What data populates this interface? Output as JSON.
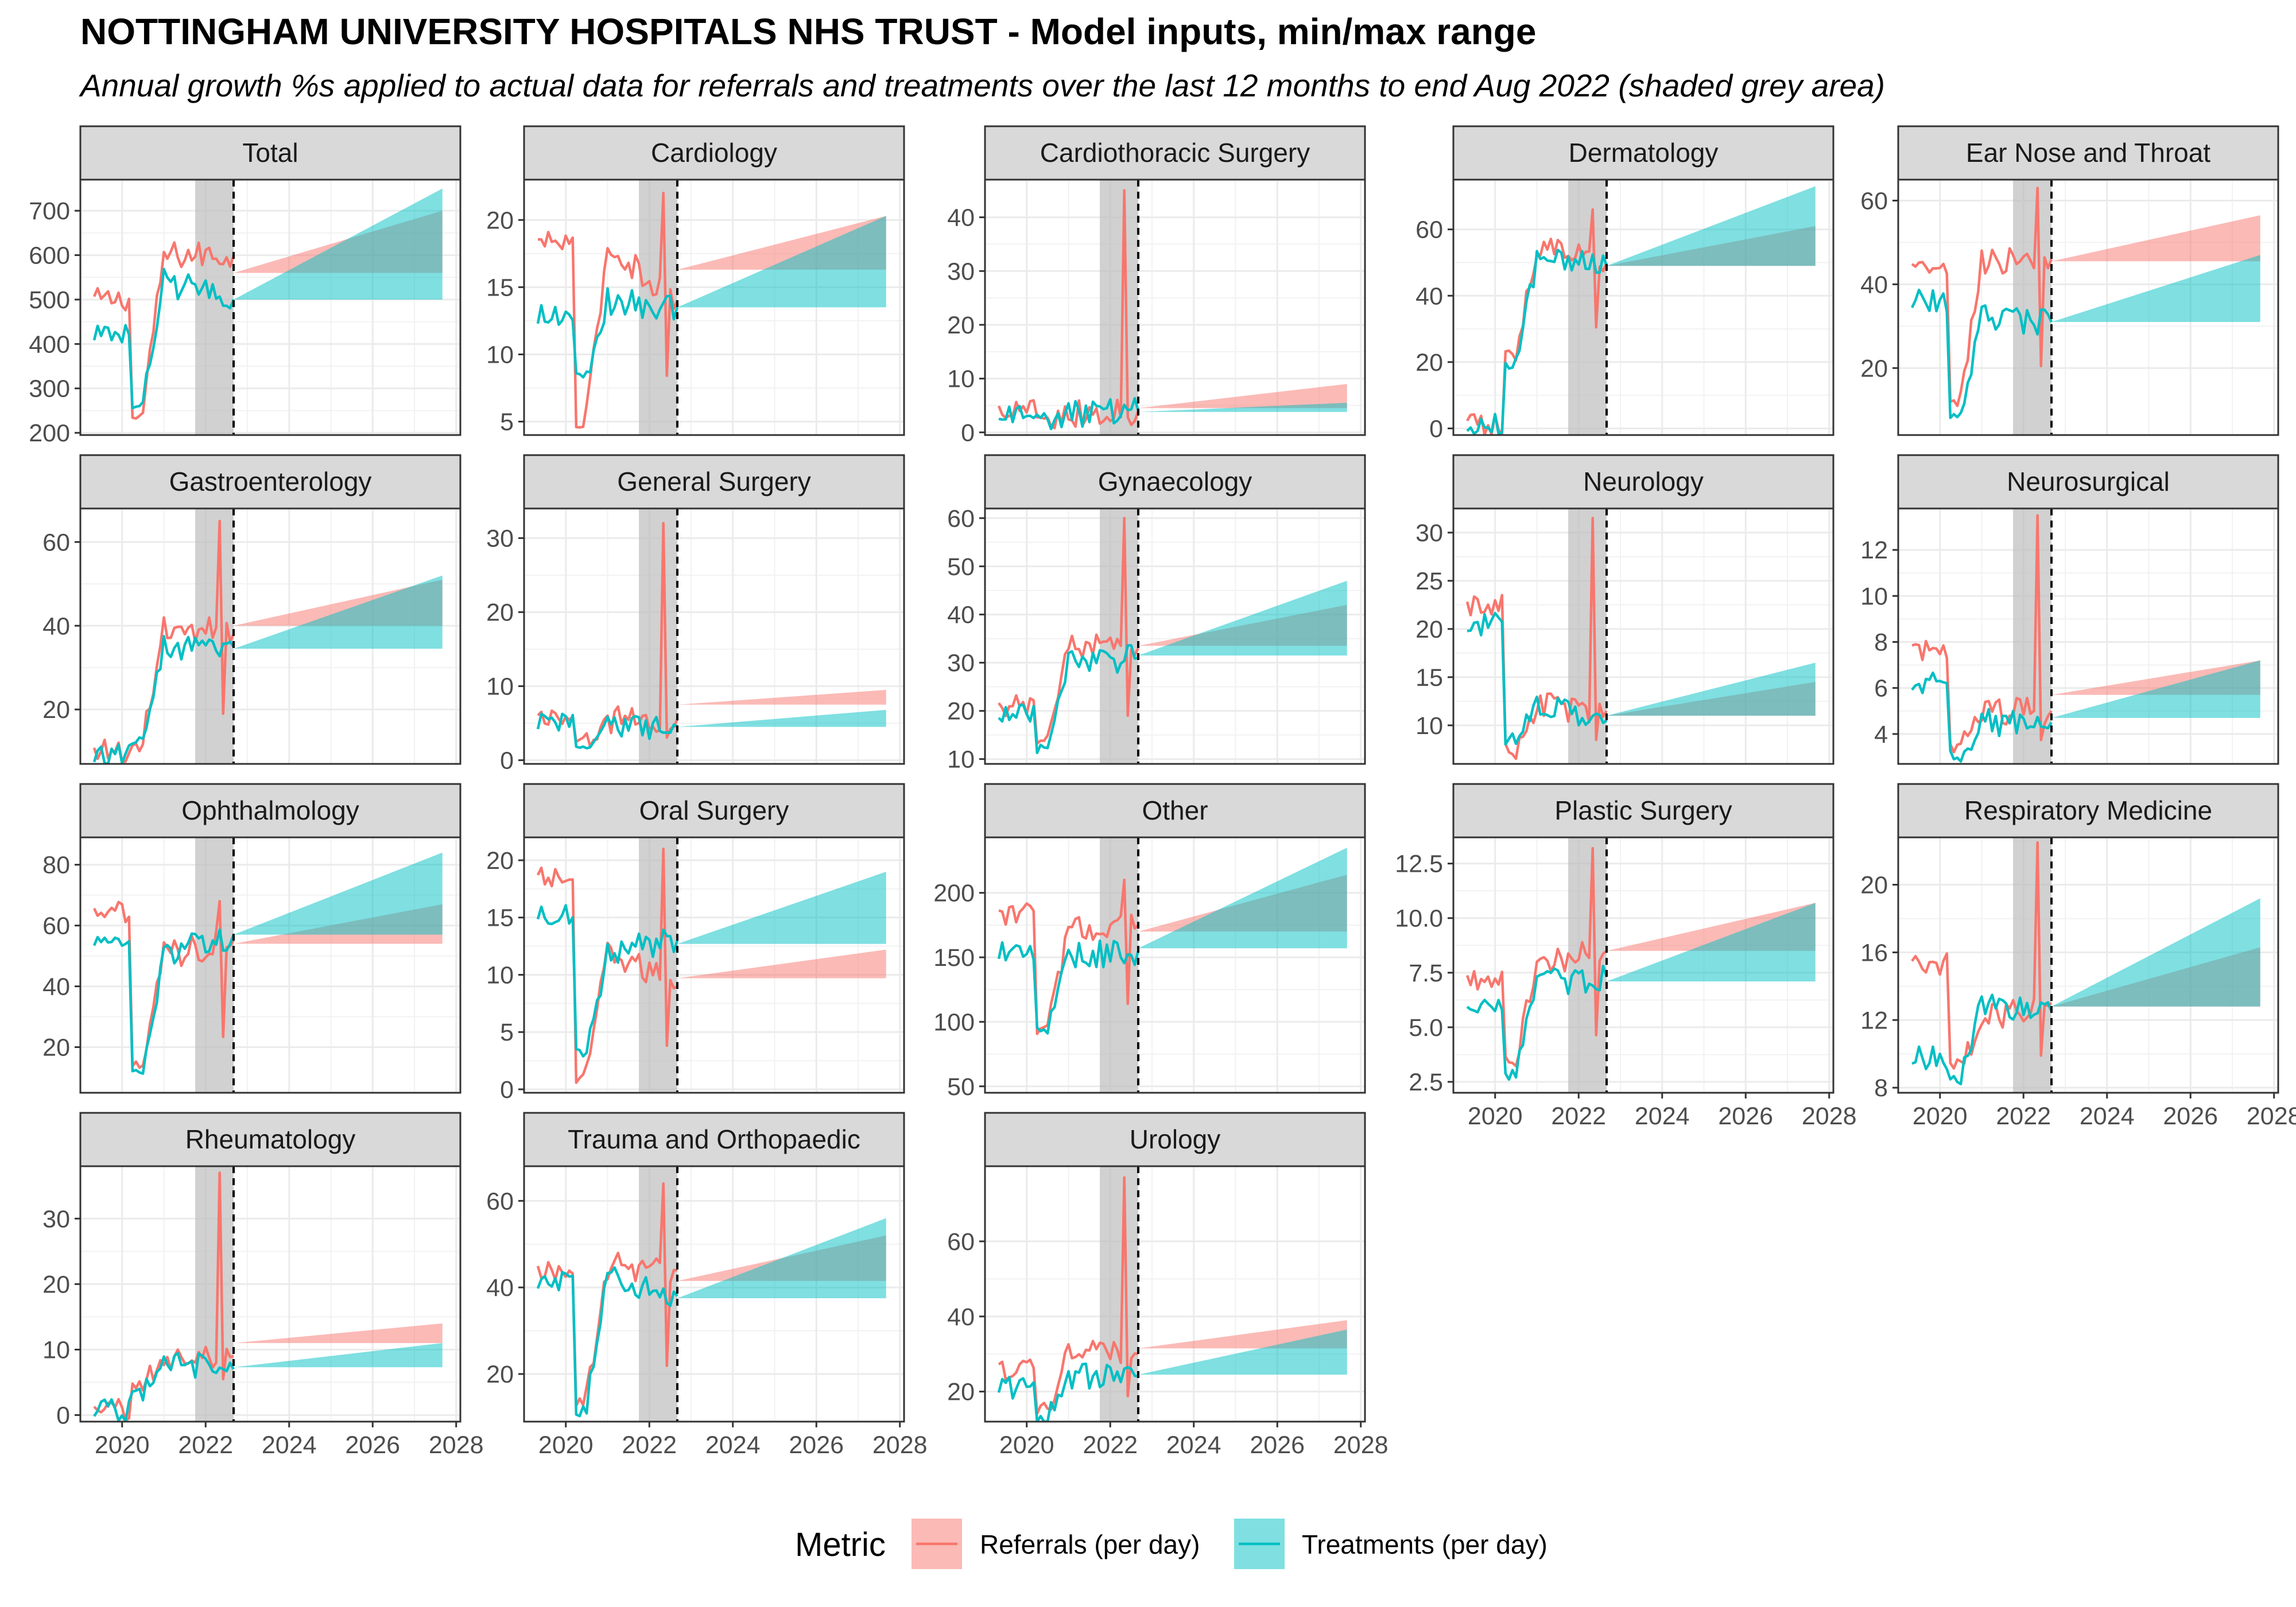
{
  "chart_data": {
    "type": "line",
    "title": "NOTTINGHAM UNIVERSITY HOSPITALS NHS TRUST - Model inputs, min/max range",
    "subtitle": "Annual growth %s applied to actual data for referrals and treatments over the last 12 months to end Aug 2022 (shaded grey area)",
    "x_ticks": [
      "2020",
      "2022",
      "2024",
      "2026",
      "2028"
    ],
    "x_range": [
      2019.0,
      2028.1
    ],
    "history_start": 2019.33,
    "history_end": 2022.67,
    "shaded_period": [
      2021.75,
      2022.67
    ],
    "projection_end": 2027.67,
    "legend": {
      "title": "Metric",
      "position": "bottom",
      "entries": [
        {
          "label": "Referrals (per day)",
          "line_color": "#F8766D",
          "fill_color": "#F8766D"
        },
        {
          "label": "Treatments (per day)",
          "line_color": "#00BFC4",
          "fill_color": "#00BFC4"
        }
      ]
    },
    "grid": true,
    "panels": [
      {
        "name": "Total",
        "ylim": [
          195,
          770
        ],
        "yticks": [
          200,
          300,
          400,
          500,
          600,
          700
        ],
        "ref_start": 490,
        "ref_mid": 600,
        "ref_low": 220,
        "ref_end": 600,
        "ref_spike": null,
        "treat_start": 415,
        "treat_mid": 540,
        "treat_low": 235,
        "treat_end": 500,
        "ref_band": [
          560,
          560,
          560,
          700
        ],
        "treat_band": [
          500,
          500,
          500,
          750
        ]
      },
      {
        "name": "Cardiology",
        "ylim": [
          4,
          23
        ],
        "yticks": [
          5,
          10,
          15,
          20
        ],
        "ref_start": 18,
        "ref_mid": 18,
        "ref_low": 4.3,
        "ref_end": 14,
        "ref_spike": 22,
        "treat_start": 12.5,
        "treat_mid": 14,
        "treat_low": 8,
        "treat_end": 13.5,
        "ref_band": [
          16.3,
          16.3,
          16.3,
          20.3
        ],
        "treat_band": [
          13.5,
          13.5,
          13.5,
          20.3
        ]
      },
      {
        "name": "Cardiothoracic Surgery",
        "ylim": [
          -0.5,
          47
        ],
        "yticks": [
          0,
          10,
          20,
          30,
          40
        ],
        "ref_start": 3.5,
        "ref_mid": 3.5,
        "ref_low": 2.5,
        "ref_end": 4,
        "ref_spike": 45,
        "treat_start": 3,
        "treat_mid": 3.2,
        "treat_low": 2,
        "treat_end": 4,
        "ref_band": [
          4.5,
          4.5,
          4.5,
          9
        ],
        "treat_band": [
          3.8,
          3.8,
          3.8,
          5.5
        ]
      },
      {
        "name": "Dermatology",
        "ylim": [
          -2,
          75
        ],
        "yticks": [
          0,
          20,
          40,
          60
        ],
        "ref_start": 0,
        "ref_mid": 55,
        "ref_low": 20,
        "ref_end": 50,
        "ref_spike": 66,
        "treat_start": 0,
        "treat_mid": 50,
        "treat_low": 18,
        "treat_end": 49,
        "ref_band": [
          49,
          49,
          49,
          61
        ],
        "treat_band": [
          49,
          49,
          49,
          73
        ]
      },
      {
        "name": "Ear Nose and Throat",
        "ylim": [
          4,
          65
        ],
        "yticks": [
          20,
          40,
          60
        ],
        "ref_start": 43,
        "ref_mid": 45,
        "ref_low": 10,
        "ref_end": 46,
        "ref_spike": 63,
        "treat_start": 35,
        "treat_mid": 32,
        "treat_low": 7,
        "treat_end": 31,
        "ref_band": [
          45.5,
          45.5,
          45.5,
          56.5
        ],
        "treat_band": [
          31,
          31,
          31,
          47
        ]
      },
      {
        "name": "Gastroenterology",
        "ylim": [
          7,
          68
        ],
        "yticks": [
          20,
          40,
          60
        ],
        "ref_start": 9,
        "ref_mid": 40,
        "ref_low": 10,
        "ref_end": 38,
        "ref_spike": 65,
        "treat_start": 8,
        "treat_mid": 35,
        "treat_low": 11,
        "treat_end": 35,
        "ref_band": [
          40,
          40,
          40,
          51
        ],
        "treat_band": [
          34.5,
          34.5,
          34.5,
          52
        ]
      },
      {
        "name": "General Surgery",
        "ylim": [
          -0.5,
          34
        ],
        "yticks": [
          0,
          10,
          20,
          30
        ],
        "ref_start": 5,
        "ref_mid": 5.5,
        "ref_low": 2,
        "ref_end": 5.5,
        "ref_spike": 32,
        "treat_start": 4.5,
        "treat_mid": 4.5,
        "treat_low": 1.5,
        "treat_end": 4.5,
        "ref_band": [
          7.5,
          7.5,
          7.5,
          9.5
        ],
        "treat_band": [
          4.5,
          4.5,
          4.5,
          6.8
        ]
      },
      {
        "name": "Gynaecology",
        "ylim": [
          9,
          62
        ],
        "yticks": [
          10,
          20,
          30,
          40,
          50,
          60
        ],
        "ref_start": 20,
        "ref_mid": 33,
        "ref_low": 13,
        "ref_end": 33,
        "ref_spike": 60,
        "treat_start": 19,
        "treat_mid": 30,
        "treat_low": 11,
        "treat_end": 31,
        "ref_band": [
          33.5,
          33.5,
          33.5,
          42
        ],
        "treat_band": [
          31.5,
          31.5,
          31.5,
          47
        ]
      },
      {
        "name": "Neurology",
        "ylim": [
          6,
          32.5
        ],
        "yticks": [
          10,
          15,
          20,
          25,
          30
        ],
        "ref_start": 22,
        "ref_mid": 12,
        "ref_low": 7,
        "ref_end": 11.5,
        "ref_spike": 31.5,
        "treat_start": 20,
        "treat_mid": 12,
        "treat_low": 8,
        "treat_end": 10.5,
        "ref_band": [
          11,
          11,
          11,
          14.5
        ],
        "treat_band": [
          11,
          11,
          11,
          16.5
        ]
      },
      {
        "name": "Neurosurgical",
        "ylim": [
          2.7,
          13.8
        ],
        "yticks": [
          4,
          6,
          8,
          10,
          12
        ],
        "ref_start": 7.5,
        "ref_mid": 5,
        "ref_low": 3.2,
        "ref_end": 5,
        "ref_spike": 13.5,
        "treat_start": 6,
        "treat_mid": 4.5,
        "treat_low": 2.8,
        "treat_end": 4.5,
        "ref_band": [
          5.7,
          5.7,
          5.7,
          7.2
        ],
        "treat_band": [
          4.7,
          4.7,
          4.7,
          7.2
        ]
      },
      {
        "name": "Ophthalmology",
        "ylim": [
          5,
          89
        ],
        "yticks": [
          20,
          40,
          60,
          80
        ],
        "ref_start": 63,
        "ref_mid": 50,
        "ref_low": 12,
        "ref_end": 55,
        "ref_spike": 68,
        "treat_start": 54,
        "treat_mid": 50,
        "treat_low": 9,
        "treat_end": 57,
        "ref_band": [
          54,
          54,
          54,
          67
        ],
        "treat_band": [
          57,
          57,
          57,
          84
        ]
      },
      {
        "name": "Oral Surgery",
        "ylim": [
          -0.3,
          22
        ],
        "yticks": [
          0,
          5,
          10,
          15,
          20
        ],
        "ref_start": 18,
        "ref_mid": 12,
        "ref_low": 0.3,
        "ref_end": 9,
        "ref_spike": 21,
        "treat_start": 15,
        "treat_mid": 12,
        "treat_low": 2.8,
        "treat_end": 13,
        "ref_band": [
          9.7,
          9.7,
          9.7,
          12.2
        ],
        "treat_band": [
          12.7,
          12.7,
          12.7,
          19
        ]
      },
      {
        "name": "Other",
        "ylim": [
          45,
          243
        ],
        "yticks": [
          50,
          100,
          150,
          200
        ],
        "ref_start": 180,
        "ref_mid": 170,
        "ref_low": 90,
        "ref_end": 175,
        "ref_spike": 210,
        "treat_start": 150,
        "treat_mid": 150,
        "treat_low": 90,
        "treat_end": 155,
        "ref_band": [
          170,
          170,
          170,
          214
        ],
        "treat_band": [
          157,
          157,
          157,
          235
        ]
      },
      {
        "name": "Plastic Surgery",
        "ylim": [
          2,
          13.7
        ],
        "yticks": [
          2.5,
          5.0,
          7.5,
          10.0,
          12.5
        ],
        "ref_start": 7,
        "ref_mid": 8,
        "ref_low": 3.2,
        "ref_end": 8.5,
        "ref_spike": 13.2,
        "treat_start": 6,
        "treat_mid": 7,
        "treat_low": 2.6,
        "treat_end": 7.3,
        "ref_band": [
          8.5,
          8.5,
          8.5,
          10.7
        ],
        "treat_band": [
          7.1,
          7.1,
          7.1,
          10.7
        ]
      },
      {
        "name": "Respiratory Medicine",
        "ylim": [
          7.7,
          22.8
        ],
        "yticks": [
          8,
          12,
          16,
          20
        ],
        "ref_start": 15,
        "ref_mid": 12,
        "ref_low": 9,
        "ref_end": 13,
        "ref_spike": 22.5,
        "treat_start": 9.5,
        "treat_mid": 13,
        "treat_low": 8.2,
        "treat_end": 12.5,
        "ref_band": [
          12.8,
          12.8,
          12.8,
          16.3
        ],
        "treat_band": [
          12.8,
          12.8,
          12.8,
          19.2
        ]
      },
      {
        "name": "Rheumatology",
        "ylim": [
          -1,
          38
        ],
        "yticks": [
          0,
          10,
          20,
          30
        ],
        "ref_start": 0,
        "ref_mid": 9,
        "ref_low": 4,
        "ref_end": 9,
        "ref_spike": 37,
        "treat_start": 0,
        "treat_mid": 8,
        "treat_low": 3,
        "treat_end": 7,
        "ref_band": [
          11,
          11,
          11,
          14
        ],
        "treat_band": [
          7.3,
          7.3,
          7.3,
          11
        ]
      },
      {
        "name": "Trauma and Orthopaedic",
        "ylim": [
          9,
          68
        ],
        "yticks": [
          20,
          40,
          60
        ],
        "ref_start": 43,
        "ref_mid": 45,
        "ref_low": 12,
        "ref_end": 44,
        "ref_spike": 64,
        "treat_start": 40,
        "treat_mid": 42,
        "treat_low": 10,
        "treat_end": 38,
        "ref_band": [
          41.5,
          41.5,
          41.5,
          52
        ],
        "treat_band": [
          37.5,
          37.5,
          37.5,
          56
        ]
      },
      {
        "name": "Urology",
        "ylim": [
          12,
          80
        ],
        "yticks": [
          20,
          40,
          60
        ],
        "ref_start": 25,
        "ref_mid": 30,
        "ref_low": 14,
        "ref_end": 30,
        "ref_spike": 77,
        "treat_start": 20,
        "treat_mid": 24,
        "treat_low": 11,
        "treat_end": 24,
        "ref_band": [
          31.5,
          31.5,
          31.5,
          39
        ],
        "treat_band": [
          24.5,
          24.5,
          24.5,
          36.5
        ]
      }
    ]
  }
}
